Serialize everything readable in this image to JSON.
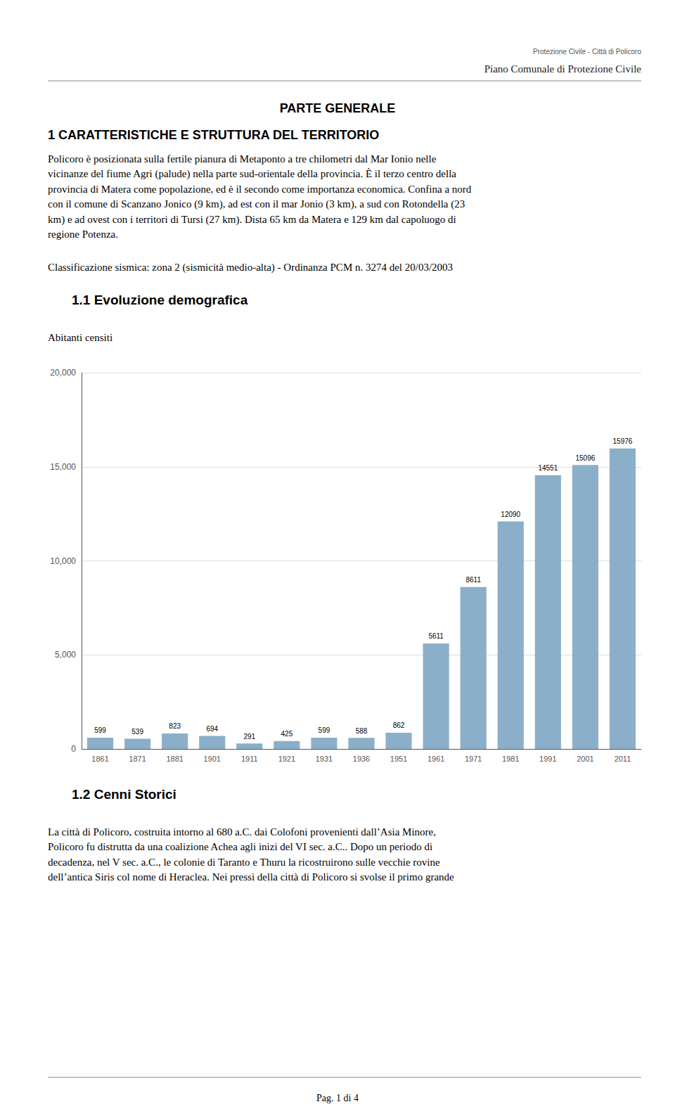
{
  "chart_data": {
    "type": "bar",
    "title": "1.1 Evoluzione demografica",
    "ylabel": "Abitanti censiti",
    "categories": [
      "1861",
      "1871",
      "1881",
      "1901",
      "1911",
      "1921",
      "1931",
      "1936",
      "1951",
      "1961",
      "1971",
      "1981",
      "1991",
      "2001",
      "2011"
    ],
    "values": [
      599,
      539,
      823,
      694,
      291,
      425,
      599,
      588,
      862,
      5611,
      8611,
      12090,
      14551,
      15096,
      15976
    ],
    "color": "#8BAFC8",
    "ylim": [
      0,
      20000
    ],
    "yticks": [
      0,
      5000,
      10000,
      15000,
      20000
    ],
    "grid": true,
    "data_labels": true,
    "annotations": [
      "Protezione Civile - Città di Policoro",
      "Piano Comunale di Protezione Civile",
      "PARTE GENERALE",
      "1 CARATTERISTICHE E STRUTTURA DEL TERRITORIO",
      "Policoro è posizionata sulla fertile pianura di Metaponto a tre chilometri dal Mar Ionio nelle",
      "vicinanze del fiume Agri (palude) nella parte sud-orientale della provincia. È il terzo centro della",
      "provincia di Matera come popolazione, ed è il secondo come importanza economica. Confina a nord",
      "con il comune di Scanzano Jonico (9 km), ad est con il mar Jonio (3 km), a sud con Rotondella (23",
      "km) e ad ovest con i territori di Tursi (27 km). Dista 65 km da Matera e 129 km dal capoluogo di",
      "regione Potenza.",
      "Classificazione sismica: zona 2 (sismicità medio-alta) - Ordinanza PCM n. 3274 del 20/03/2003",
      "1.2 Cenni Storici",
      "La città di Policoro, costruita intorno al 680 a.C. dai Colofoni provenienti dall’Asia Minore,",
      "Policoro fu distrutta da una coalizione Achea agli inizi del VI sec. a.C.. Dopo un periodo di",
      "decadenza, nel V sec. a.C., le colonie di Taranto e Thuru la ricostruirono sulle vecchie rovine",
      "dell’antica Siris col nome di Heraclea. Nei pressi della città di Policoro si svolse il primo grande",
      "Pag. 1 di 4"
    ]
  }
}
